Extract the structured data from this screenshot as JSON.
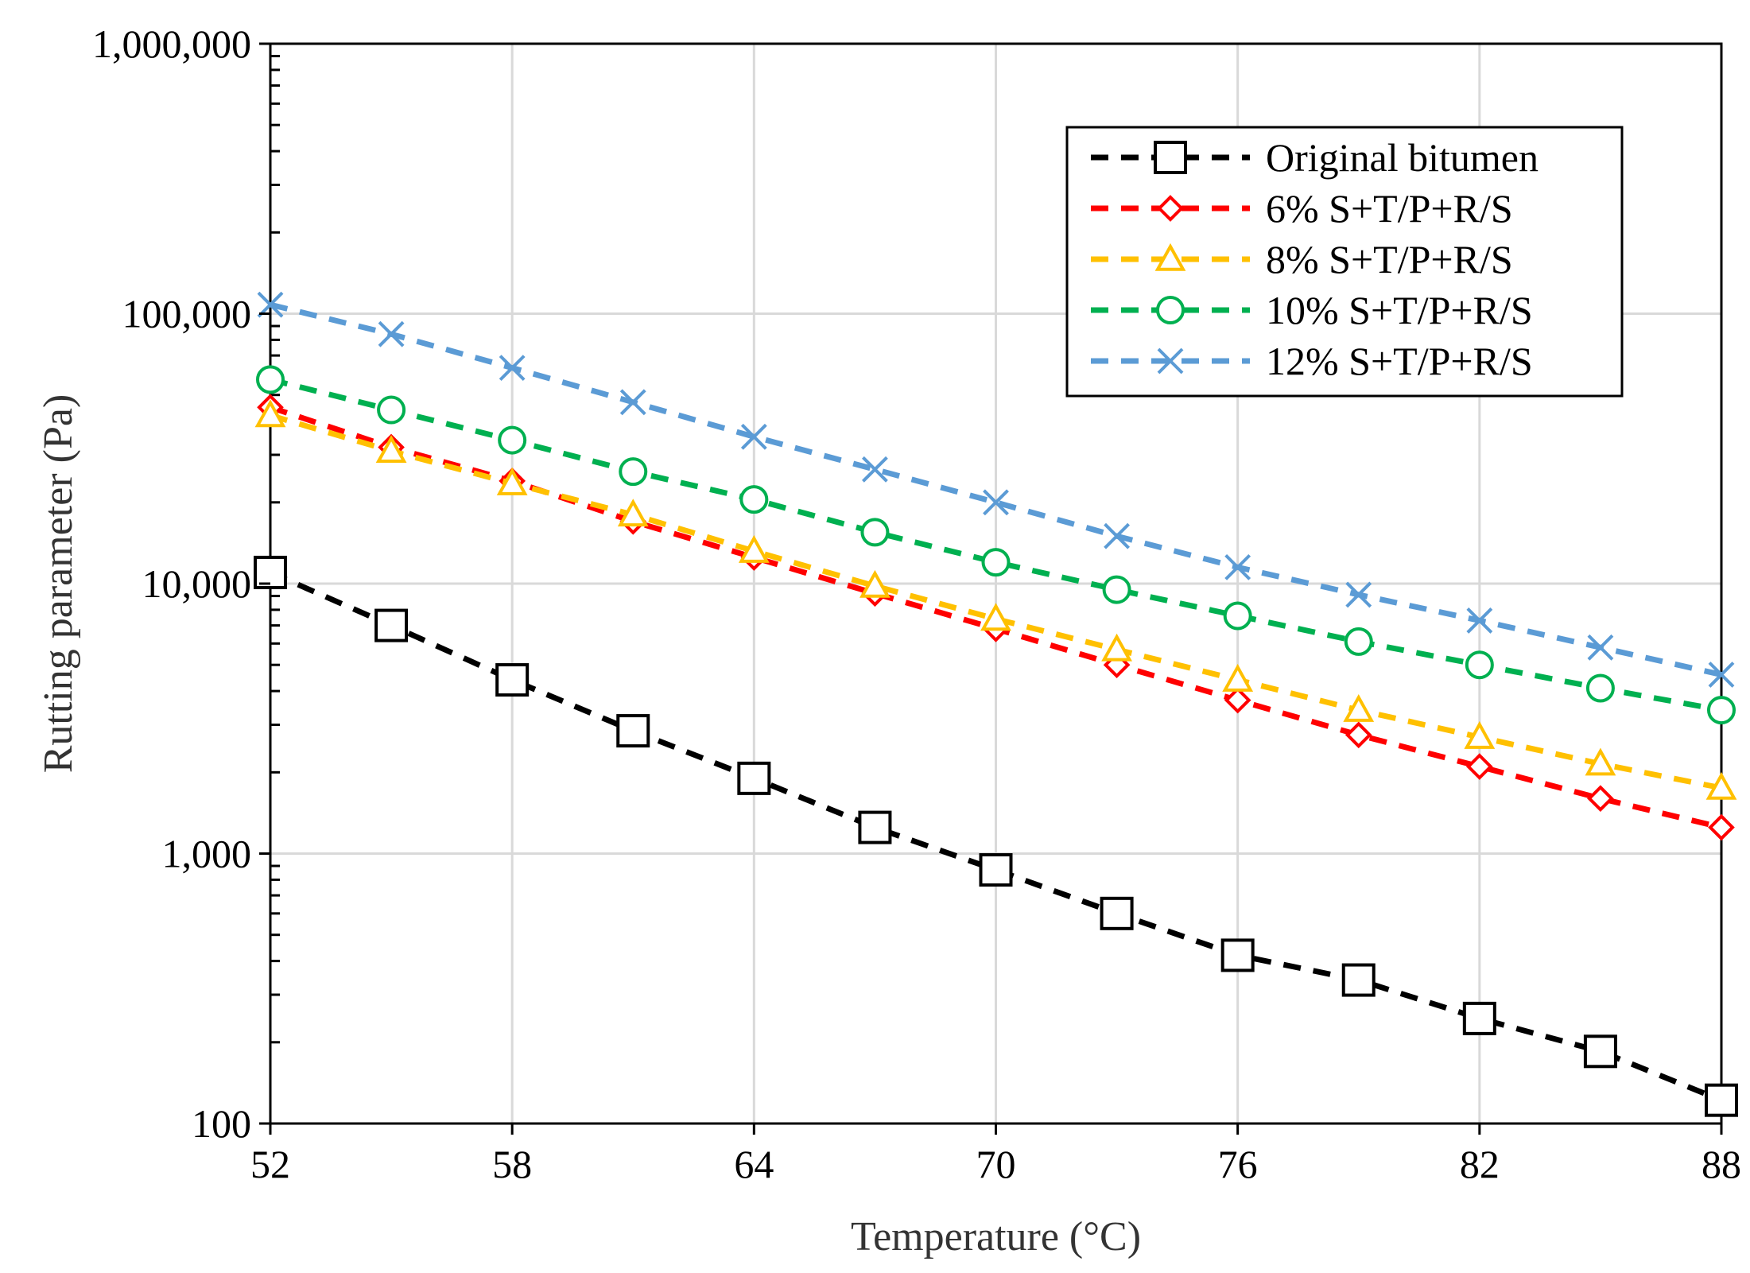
{
  "chart_data": {
    "type": "line",
    "title": "",
    "xlabel": "Temperature (°C)",
    "ylabel": "Rutting parameter (Pa)",
    "xlim": [
      52,
      88
    ],
    "ylim": [
      100,
      1000000
    ],
    "yscale": "log",
    "grid": true,
    "legend_position": "top-right",
    "x_ticks": [
      52,
      58,
      64,
      70,
      76,
      82,
      88
    ],
    "x_tick_labels": [
      "52",
      "58",
      "64",
      "70",
      "76",
      "82",
      "88"
    ],
    "y_ticks": [
      100,
      1000,
      10000,
      100000,
      1000000
    ],
    "y_tick_labels": [
      "100",
      "1,000",
      "10,000",
      "100,000",
      "1,000,000"
    ],
    "x": [
      52,
      55,
      58,
      61,
      64,
      67,
      70,
      73,
      76,
      79,
      82,
      85,
      88
    ],
    "series": [
      {
        "name": "Original bitumen",
        "color": "#000000",
        "marker": "square",
        "values": [
          11000,
          7000,
          4400,
          2850,
          1900,
          1250,
          870,
          600,
          420,
          340,
          245,
          185,
          122
        ]
      },
      {
        "name": "6% S+T/P+R/S",
        "color": "#ff0000",
        "marker": "diamond",
        "values": [
          45000,
          32000,
          24000,
          17000,
          12500,
          9200,
          6800,
          5000,
          3700,
          2750,
          2100,
          1600,
          1250
        ]
      },
      {
        "name": "8% S+T/P+R/S",
        "color": "#ffc000",
        "marker": "triangle",
        "values": [
          42000,
          31000,
          23500,
          18000,
          13200,
          9800,
          7400,
          5700,
          4400,
          3400,
          2700,
          2150,
          1750
        ]
      },
      {
        "name": "10% S+T/P+R/S",
        "color": "#00b050",
        "marker": "circle",
        "values": [
          57000,
          44000,
          34000,
          26000,
          20500,
          15500,
          12000,
          9500,
          7600,
          6100,
          5000,
          4100,
          3400
        ]
      },
      {
        "name": "12% S+T/P+R/S",
        "color": "#5b9bd5",
        "marker": "x",
        "values": [
          108000,
          84000,
          63000,
          47000,
          35000,
          26500,
          20000,
          15000,
          11500,
          9100,
          7300,
          5800,
          4600
        ]
      }
    ]
  }
}
